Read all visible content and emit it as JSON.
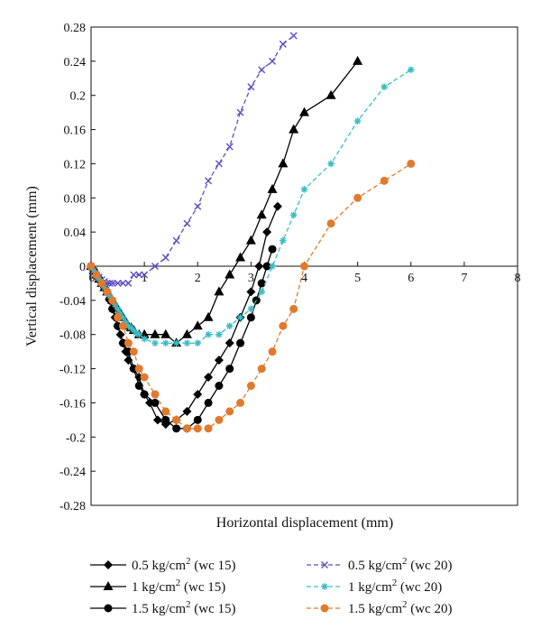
{
  "chart_data": {
    "type": "line",
    "xlabel": "Horizontal displacement (mm)",
    "ylabel": "Vertical displacement (mm)",
    "xlim": [
      0,
      8
    ],
    "ylim": [
      -0.28,
      0.28
    ],
    "x_ticks": [
      "0",
      "1",
      "2",
      "3",
      "4",
      "5",
      "6",
      "7",
      "8"
    ],
    "y_ticks": [
      "0.28",
      "0.24",
      "0.2",
      "0.16",
      "0.12",
      "0.08",
      "0.04",
      "0",
      "-0.04",
      "-0.08",
      "-0.12",
      "-0.16",
      "-0.2",
      "-0.24",
      "-0.28"
    ],
    "grid": false,
    "legend_position": "bottom",
    "series": [
      {
        "name": "0.5 kg/cm² (wc 15)",
        "legend_parts": [
          "0.5 kg/cm",
          "2",
          " (wc 15)"
        ],
        "color": "#000000",
        "marker": "diamond",
        "dashed": false,
        "x": [
          0,
          0.05,
          0.1,
          0.15,
          0.2,
          0.25,
          0.3,
          0.35,
          0.4,
          0.45,
          0.5,
          0.55,
          0.6,
          0.65,
          0.7,
          0.8,
          0.9,
          1.0,
          1.1,
          1.25,
          1.4,
          1.6,
          1.8,
          2.0,
          2.2,
          2.4,
          2.6,
          2.8,
          3.0,
          3.15,
          3.3,
          3.5
        ],
        "y": [
          0,
          -0.005,
          -0.01,
          -0.015,
          -0.02,
          -0.025,
          -0.03,
          -0.04,
          -0.05,
          -0.06,
          -0.07,
          -0.08,
          -0.09,
          -0.1,
          -0.11,
          -0.12,
          -0.13,
          -0.15,
          -0.16,
          -0.18,
          -0.185,
          -0.18,
          -0.17,
          -0.15,
          -0.13,
          -0.11,
          -0.09,
          -0.06,
          -0.03,
          0.0,
          0.04,
          0.07
        ]
      },
      {
        "name": "1 kg/cm² (wc 15)",
        "legend_parts": [
          "1 kg/cm",
          "2",
          " (wc 15)"
        ],
        "color": "#000000",
        "marker": "triangle",
        "dashed": false,
        "x": [
          0,
          0.05,
          0.1,
          0.15,
          0.2,
          0.25,
          0.3,
          0.35,
          0.4,
          0.45,
          0.5,
          0.55,
          0.6,
          0.65,
          0.7,
          0.75,
          0.8,
          0.9,
          1.0,
          1.2,
          1.4,
          1.6,
          1.8,
          2.0,
          2.2,
          2.4,
          2.6,
          2.8,
          3.0,
          3.2,
          3.4,
          3.6,
          3.8,
          4.0,
          4.5,
          5.0
        ],
        "y": [
          0,
          -0.005,
          -0.01,
          -0.015,
          -0.02,
          -0.025,
          -0.03,
          -0.035,
          -0.04,
          -0.045,
          -0.05,
          -0.055,
          -0.06,
          -0.065,
          -0.07,
          -0.072,
          -0.075,
          -0.08,
          -0.08,
          -0.08,
          -0.08,
          -0.09,
          -0.08,
          -0.07,
          -0.06,
          -0.03,
          -0.01,
          0.01,
          0.03,
          0.06,
          0.09,
          0.12,
          0.16,
          0.18,
          0.2,
          0.24
        ]
      },
      {
        "name": "1.5 kg/cm² (wc 15)",
        "legend_parts": [
          "1.5 kg/cm",
          "2",
          " (wc 15)"
        ],
        "color": "#000000",
        "marker": "circle",
        "dashed": false,
        "x": [
          0,
          0.05,
          0.1,
          0.15,
          0.2,
          0.3,
          0.4,
          0.5,
          0.6,
          0.7,
          0.8,
          0.9,
          1.0,
          1.2,
          1.4,
          1.6,
          1.8,
          2.0,
          2.2,
          2.4,
          2.6,
          2.8,
          3.0,
          3.1,
          3.2,
          3.3,
          3.4
        ],
        "y": [
          0,
          -0.005,
          -0.01,
          -0.015,
          -0.02,
          -0.03,
          -0.05,
          -0.07,
          -0.09,
          -0.1,
          -0.12,
          -0.14,
          -0.15,
          -0.16,
          -0.18,
          -0.19,
          -0.19,
          -0.18,
          -0.16,
          -0.14,
          -0.12,
          -0.09,
          -0.06,
          -0.04,
          -0.02,
          0.0,
          0.02
        ]
      },
      {
        "name": "0.5 kg/cm² (wc 20)",
        "legend_parts": [
          "0.5 kg/cm",
          "2",
          " (wc 20)"
        ],
        "color": "#5b4fc4",
        "marker": "x",
        "dashed": true,
        "x": [
          0,
          0.05,
          0.1,
          0.15,
          0.2,
          0.25,
          0.3,
          0.35,
          0.4,
          0.5,
          0.6,
          0.7,
          0.8,
          0.9,
          1.0,
          1.2,
          1.4,
          1.6,
          1.8,
          2.0,
          2.2,
          2.4,
          2.6,
          2.8,
          3.0,
          3.2,
          3.4,
          3.6,
          3.8
        ],
        "y": [
          0,
          -0.005,
          -0.01,
          -0.013,
          -0.016,
          -0.018,
          -0.02,
          -0.02,
          -0.02,
          -0.02,
          -0.02,
          -0.02,
          -0.01,
          -0.01,
          -0.01,
          0.0,
          0.01,
          0.03,
          0.05,
          0.07,
          0.1,
          0.12,
          0.14,
          0.18,
          0.21,
          0.23,
          0.24,
          0.26,
          0.27
        ]
      },
      {
        "name": "1 kg/cm² (wc 20)",
        "legend_parts": [
          "1 kg/cm",
          "2",
          " (wc 20)"
        ],
        "color": "#3bbcc4",
        "marker": "asterisk",
        "dashed": true,
        "x": [
          0,
          0.05,
          0.1,
          0.15,
          0.2,
          0.25,
          0.3,
          0.35,
          0.4,
          0.45,
          0.5,
          0.55,
          0.6,
          0.65,
          0.7,
          0.75,
          0.8,
          0.85,
          0.9,
          1.0,
          1.2,
          1.4,
          1.6,
          1.8,
          2.0,
          2.2,
          2.4,
          2.6,
          2.8,
          3.0,
          3.2,
          3.4,
          3.6,
          3.8,
          4.0,
          4.5,
          5.0,
          5.5,
          6.0
        ],
        "y": [
          0,
          -0.005,
          -0.01,
          -0.015,
          -0.02,
          -0.025,
          -0.03,
          -0.035,
          -0.04,
          -0.045,
          -0.05,
          -0.055,
          -0.06,
          -0.065,
          -0.07,
          -0.072,
          -0.075,
          -0.078,
          -0.08,
          -0.085,
          -0.09,
          -0.09,
          -0.09,
          -0.09,
          -0.09,
          -0.08,
          -0.08,
          -0.07,
          -0.06,
          -0.05,
          -0.03,
          0.0,
          0.03,
          0.06,
          0.09,
          0.12,
          0.17,
          0.21,
          0.23
        ]
      },
      {
        "name": "1.5 kg/cm² (wc 20)",
        "legend_parts": [
          "1.5 kg/cm",
          "2",
          " (wc 20)"
        ],
        "color": "#e07a2e",
        "marker": "circle",
        "dashed": true,
        "x": [
          0,
          0.1,
          0.2,
          0.3,
          0.4,
          0.5,
          0.6,
          0.7,
          0.8,
          0.9,
          1.0,
          1.2,
          1.4,
          1.6,
          1.8,
          2.0,
          2.2,
          2.4,
          2.6,
          2.8,
          3.0,
          3.2,
          3.4,
          3.6,
          3.8,
          4.0,
          4.5,
          5.0,
          5.5,
          6.0
        ],
        "y": [
          0,
          -0.01,
          -0.02,
          -0.03,
          -0.04,
          -0.06,
          -0.07,
          -0.09,
          -0.1,
          -0.12,
          -0.13,
          -0.15,
          -0.17,
          -0.18,
          -0.19,
          -0.19,
          -0.19,
          -0.18,
          -0.17,
          -0.16,
          -0.14,
          -0.12,
          -0.1,
          -0.07,
          -0.05,
          0.0,
          0.05,
          0.08,
          0.1,
          0.12
        ]
      }
    ]
  }
}
